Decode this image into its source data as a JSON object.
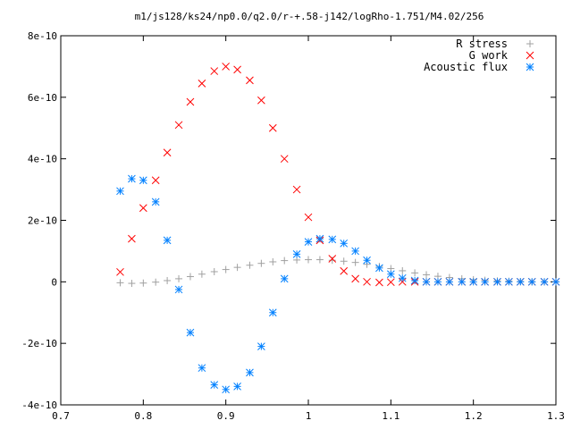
{
  "chart_data": {
    "type": "scatter",
    "title": "m1/js128/ks24/np0.0/q2.0/r-+.58-j142/logRho-1.751/M4.02/256",
    "xlabel": "",
    "ylabel": "",
    "xlim": [
      0.7,
      1.3
    ],
    "ylim": [
      -4e-10,
      8e-10
    ],
    "grid": false,
    "legend_position": "top-right",
    "x_tick_labels": [
      "0.7",
      "0.8",
      "0.9",
      "1",
      "1.1",
      "1.2",
      "1.3"
    ],
    "x_tick_values": [
      0.7,
      0.8,
      0.9,
      1.0,
      1.1,
      1.2,
      1.3
    ],
    "y_tick_labels": [
      "-4e-10",
      "-2e-10",
      "0",
      "2e-10",
      "4e-10",
      "6e-10",
      "8e-10"
    ],
    "y_tick_values": [
      -4e-10,
      -2e-10,
      0,
      2e-10,
      4e-10,
      6e-10,
      8e-10
    ],
    "x": [
      0.772,
      0.786,
      0.8,
      0.815,
      0.829,
      0.843,
      0.857,
      0.871,
      0.886,
      0.9,
      0.914,
      0.929,
      0.943,
      0.957,
      0.971,
      0.986,
      1.0,
      1.014,
      1.029,
      1.043,
      1.057,
      1.071,
      1.086,
      1.1,
      1.114,
      1.129,
      1.143,
      1.157,
      1.171,
      1.186,
      1.2,
      1.214,
      1.229,
      1.243,
      1.257,
      1.271,
      1.286,
      1.3
    ],
    "series": [
      {
        "name": "R stress",
        "color": "#a0a0a0",
        "marker": "plus",
        "values": [
          -3e-12,
          -5e-12,
          -4e-12,
          -1e-12,
          4e-12,
          1e-11,
          1.7e-11,
          2.5e-11,
          3.3e-11,
          4e-11,
          4.7e-11,
          5.4e-11,
          6e-11,
          6.5e-11,
          6.9e-11,
          7.1e-11,
          7.2e-11,
          7.2e-11,
          7e-11,
          6.7e-11,
          6.3e-11,
          5.7e-11,
          5e-11,
          4.3e-11,
          3.6e-11,
          2.9e-11,
          2.3e-11,
          1.8e-11,
          1.4e-11,
          1e-11,
          7e-12,
          5e-12,
          3e-12,
          2e-12,
          1e-12,
          0.0,
          0.0,
          0.0
        ]
      },
      {
        "name": "G work",
        "color": "#ff0000",
        "marker": "cross",
        "values": [
          3.2e-11,
          1.4e-10,
          2.4e-10,
          3.3e-10,
          4.2e-10,
          5.1e-10,
          5.85e-10,
          6.45e-10,
          6.85e-10,
          7e-10,
          6.9e-10,
          6.55e-10,
          5.9e-10,
          5e-10,
          4e-10,
          3e-10,
          2.1e-10,
          1.35e-10,
          7.5e-11,
          3.5e-11,
          1e-11,
          0.0,
          -2e-12,
          -1e-12,
          0.0,
          0.0,
          0.0,
          0.0,
          0.0,
          0.0,
          0.0,
          0.0,
          0.0,
          0.0,
          0.0,
          0.0,
          0.0,
          0.0
        ]
      },
      {
        "name": "Acoustic flux",
        "color": "#0080ff",
        "marker": "star",
        "values": [
          2.95e-10,
          3.35e-10,
          3.3e-10,
          2.6e-10,
          1.35e-10,
          -2.5e-11,
          -1.65e-10,
          -2.8e-10,
          -3.35e-10,
          -3.5e-10,
          -3.4e-10,
          -2.95e-10,
          -2.1e-10,
          -1e-10,
          1e-11,
          9e-11,
          1.3e-10,
          1.4e-10,
          1.38e-10,
          1.25e-10,
          1e-10,
          7e-11,
          4.5e-11,
          2.5e-11,
          1.2e-11,
          4e-12,
          0.0,
          0.0,
          0.0,
          0.0,
          0.0,
          0.0,
          0.0,
          0.0,
          0.0,
          0.0,
          0.0,
          0.0
        ]
      }
    ]
  }
}
